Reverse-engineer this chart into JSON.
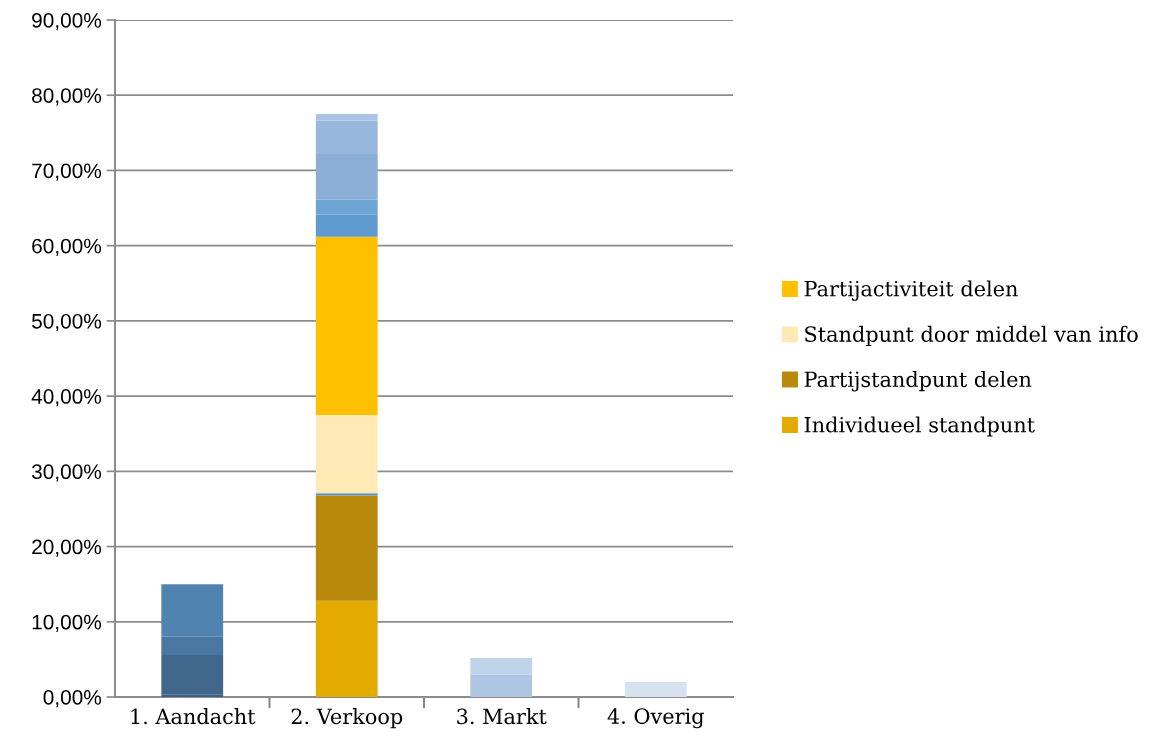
{
  "chart_data": {
    "type": "bar",
    "stacked": true,
    "categories": [
      "1. Aandacht",
      "2. Verkoop",
      "3. Markt",
      "4. Overig"
    ],
    "series": [
      {
        "color": "#3f5f82",
        "values": [
          0.3,
          null,
          null,
          null
        ]
      },
      {
        "color": "#41668c",
        "values": [
          5.3,
          null,
          null,
          null
        ]
      },
      {
        "color": "#4a77a2",
        "values": [
          2.4,
          null,
          null,
          null
        ]
      },
      {
        "color": "#5183b0",
        "values": [
          7.0,
          null,
          null,
          null
        ]
      },
      {
        "name": "Individueel standpunt",
        "color": "#e3ab00",
        "values": [
          null,
          12.8,
          null,
          null
        ]
      },
      {
        "name": "Partijstandpunt delen",
        "color": "#b8890a",
        "values": [
          null,
          14.0,
          null,
          null
        ]
      },
      {
        "color": "#5b8fc4",
        "values": [
          null,
          0.3,
          null,
          null
        ]
      },
      {
        "name": "Standpunt door middel van info",
        "color": "#ffeab5",
        "values": [
          null,
          10.4,
          null,
          null
        ]
      },
      {
        "name": "Partijactiviteit delen",
        "color": "#ffc000",
        "values": [
          null,
          23.7,
          null,
          null
        ]
      },
      {
        "color": "#5f9bd0",
        "values": [
          null,
          2.9,
          null,
          null
        ]
      },
      {
        "color": "#6ea4d4",
        "values": [
          null,
          2.0,
          null,
          null
        ]
      },
      {
        "color": "#8aaed6",
        "values": [
          null,
          6.1,
          null,
          null
        ]
      },
      {
        "color": "#97b8dc",
        "values": [
          null,
          4.4,
          null,
          null
        ]
      },
      {
        "color": "#a9c4e4",
        "values": [
          null,
          0.9,
          null,
          null
        ]
      },
      {
        "color": "#aec6e3",
        "values": [
          null,
          null,
          3.0,
          null
        ]
      },
      {
        "color": "#bfd3ea",
        "values": [
          null,
          null,
          2.2,
          null
        ]
      },
      {
        "color": "#d7e1ef",
        "values": [
          null,
          null,
          null,
          2.0
        ]
      }
    ],
    "ylim": [
      0,
      90
    ],
    "yticks": [
      {
        "value": 0,
        "label": "0,00%"
      },
      {
        "value": 10,
        "label": "10,00%"
      },
      {
        "value": 20,
        "label": "20,00%"
      },
      {
        "value": 30,
        "label": "30,00%"
      },
      {
        "value": 40,
        "label": "40,00%"
      },
      {
        "value": 50,
        "label": "50,00%"
      },
      {
        "value": 60,
        "label": "60,00%"
      },
      {
        "value": 70,
        "label": "70,00%"
      },
      {
        "value": 80,
        "label": "80,00%"
      },
      {
        "value": 90,
        "label": "90,00%"
      }
    ],
    "grid": "y",
    "legend": "right"
  }
}
